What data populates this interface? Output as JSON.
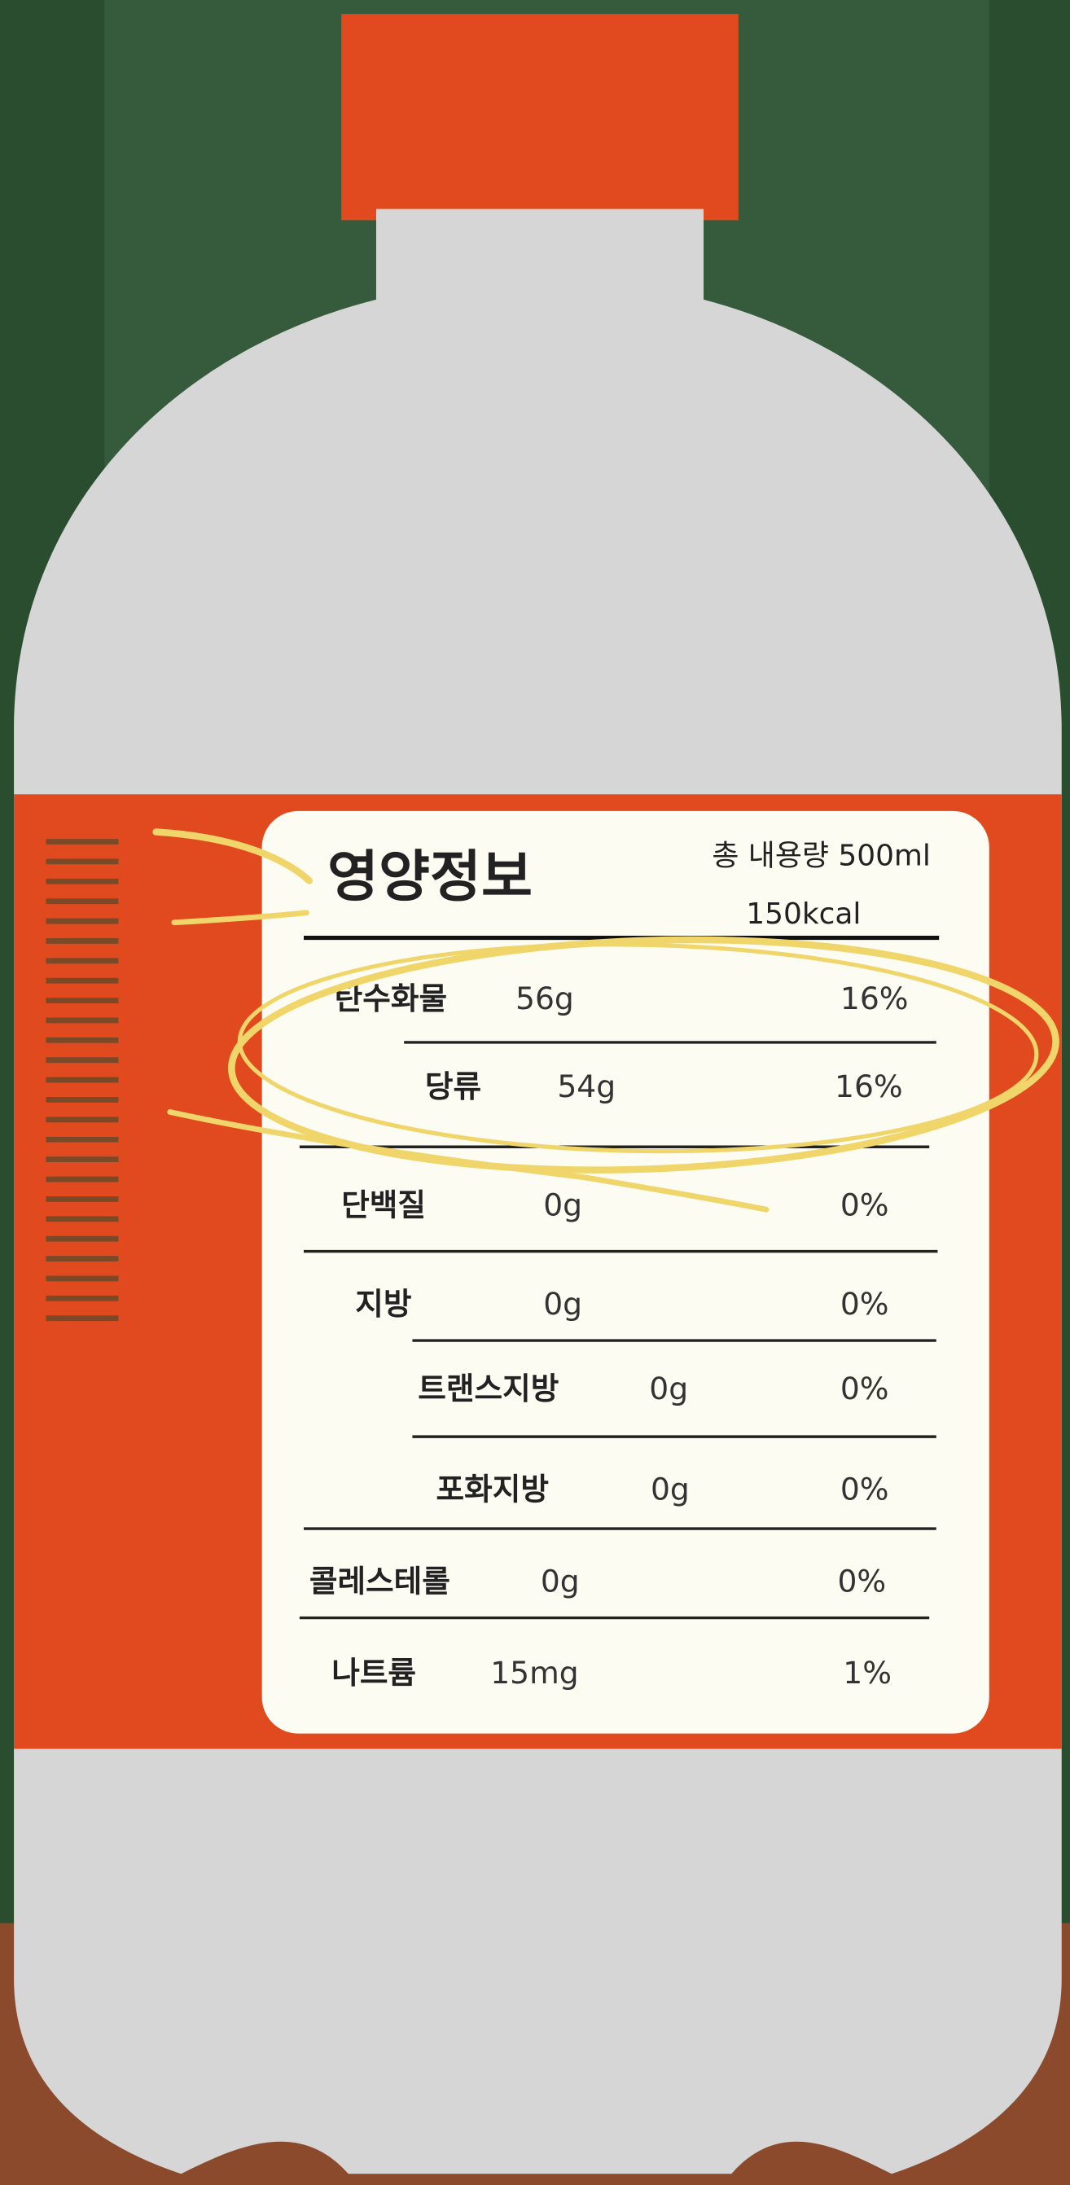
{
  "label": {
    "title": "영양정보",
    "total_volume": "총 내용량 500ml",
    "calories": "150kcal",
    "rows": [
      {
        "name": "탄수화물",
        "amount": "56g",
        "percent": "16%"
      },
      {
        "name": "당류",
        "amount": "54g",
        "percent": "16%"
      },
      {
        "name": "단백질",
        "amount": "0g",
        "percent": "0%"
      },
      {
        "name": "지방",
        "amount": "0g",
        "percent": "0%"
      },
      {
        "name": "트랜스지방",
        "amount": "0g",
        "percent": "0%"
      },
      {
        "name": "포화지방",
        "amount": "0g",
        "percent": "0%"
      },
      {
        "name": "콜레스테롤",
        "amount": "0g",
        "percent": "0%"
      },
      {
        "name": "나트륨",
        "amount": "15mg",
        "percent": "1%"
      }
    ]
  }
}
